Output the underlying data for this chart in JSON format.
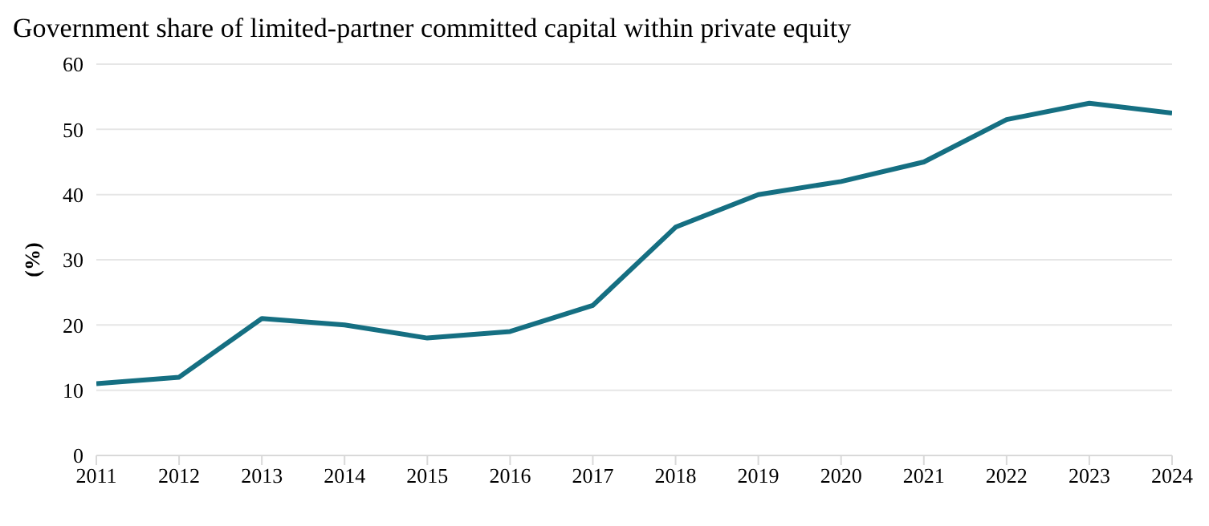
{
  "chart_data": {
    "type": "line",
    "title": "Government share of limited-partner committed capital within private equity",
    "ylabel": "(%)",
    "x": [
      2011,
      2012,
      2013,
      2014,
      2015,
      2016,
      2017,
      2018,
      2019,
      2020,
      2021,
      2022,
      2023,
      2024
    ],
    "series": [
      {
        "color": "#156f82",
        "values": [
          11,
          12,
          21,
          20,
          18,
          19,
          23,
          35,
          40,
          42,
          45,
          51.5,
          54,
          52.5
        ]
      }
    ],
    "xlim": [
      2011,
      2024
    ],
    "xticks": [
      2011,
      2012,
      2013,
      2014,
      2015,
      2016,
      2017,
      2018,
      2019,
      2020,
      2021,
      2022,
      2023,
      2024
    ],
    "ylim": [
      0,
      60
    ],
    "yticks": [
      0,
      10,
      20,
      30,
      40,
      50,
      60
    ],
    "grid": "y",
    "legend": false,
    "marker": "none",
    "line_style": "solid"
  }
}
